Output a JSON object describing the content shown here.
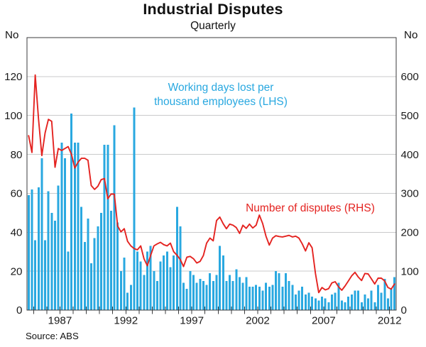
{
  "header": {
    "title": "Industrial Disputes",
    "subtitle": "Quarterly"
  },
  "axes": {
    "left_unit": "No",
    "right_unit": "No"
  },
  "footer": {
    "source": "Source: ABS"
  },
  "colors": {
    "bars": "#29A8E0",
    "line": "#E42320",
    "gridline": "#C9CACB",
    "frame": "#3B3B3C",
    "text": "#1A1A1A"
  },
  "chart_data": {
    "type": "bar",
    "title": "Industrial Disputes",
    "subtitle": "Quarterly",
    "frequency": "quarterly",
    "x_start": "1984-Q3",
    "x_end": "2012-Q2",
    "grid": true,
    "x_tick_years": [
      1987,
      1992,
      1997,
      2002,
      2007,
      2012
    ],
    "left_axis": {
      "unit": "No",
      "min": 0,
      "max": 140,
      "ticks": [
        0,
        20,
        40,
        60,
        80,
        100,
        120
      ]
    },
    "right_axis": {
      "unit": "No",
      "min": 0,
      "max": 700,
      "ticks": [
        0,
        100,
        200,
        300,
        400,
        500,
        600
      ]
    },
    "series": [
      {
        "name": "Working days lost per thousand employees (LHS)",
        "label_lines": [
          "Working days lost per",
          "thousand employees (LHS)"
        ],
        "type": "bar",
        "axis": "left",
        "color": "#29A8E0",
        "values": [
          59,
          62,
          36,
          63,
          78,
          36,
          61,
          50,
          46,
          64,
          86,
          78,
          30,
          101,
          86,
          86,
          53,
          35,
          47,
          24,
          37,
          43,
          50,
          85,
          85,
          51,
          95,
          45,
          20,
          27,
          9,
          13,
          104,
          30,
          25,
          18,
          30,
          33,
          20,
          15,
          25,
          28,
          30,
          22,
          28,
          53,
          43,
          14,
          11,
          20,
          18,
          14,
          16,
          15,
          13,
          19,
          15,
          18,
          33,
          28,
          15,
          18,
          15,
          21,
          17,
          14,
          17,
          12,
          12,
          13,
          12,
          10,
          14,
          12,
          13,
          20,
          19,
          12,
          19,
          15,
          13,
          8,
          10,
          12,
          8,
          9,
          7,
          6,
          5,
          7,
          6,
          4,
          8,
          9,
          14,
          5,
          4,
          7,
          8,
          10,
          10,
          4,
          8,
          6,
          10,
          4,
          13,
          9,
          16,
          6,
          11,
          17
        ]
      },
      {
        "name": "Number of disputes (RHS)",
        "label_lines": [
          "Number of disputes (RHS)"
        ],
        "type": "line",
        "axis": "right",
        "color": "#E42320",
        "values": [
          448,
          405,
          604,
          490,
          397,
          455,
          490,
          485,
          367,
          415,
          410,
          415,
          420,
          400,
          365,
          380,
          390,
          390,
          385,
          320,
          310,
          318,
          335,
          338,
          286,
          298,
          298,
          216,
          201,
          209,
          177,
          165,
          158,
          155,
          165,
          132,
          114,
          140,
          165,
          170,
          174,
          168,
          165,
          172,
          150,
          141,
          130,
          112,
          136,
          138,
          132,
          121,
          125,
          140,
          172,
          185,
          178,
          230,
          239,
          222,
          209,
          221,
          218,
          212,
          197,
          218,
          210,
          221,
          211,
          218,
          244,
          222,
          190,
          167,
          185,
          191,
          189,
          188,
          190,
          192,
          188,
          190,
          185,
          170,
          152,
          173,
          160,
          94,
          45,
          58,
          52,
          55,
          70,
          73,
          60,
          51,
          62,
          75,
          88,
          97,
          85,
          76,
          94,
          93,
          80,
          67,
          82,
          82,
          75,
          58,
          54,
          67
        ]
      }
    ]
  }
}
